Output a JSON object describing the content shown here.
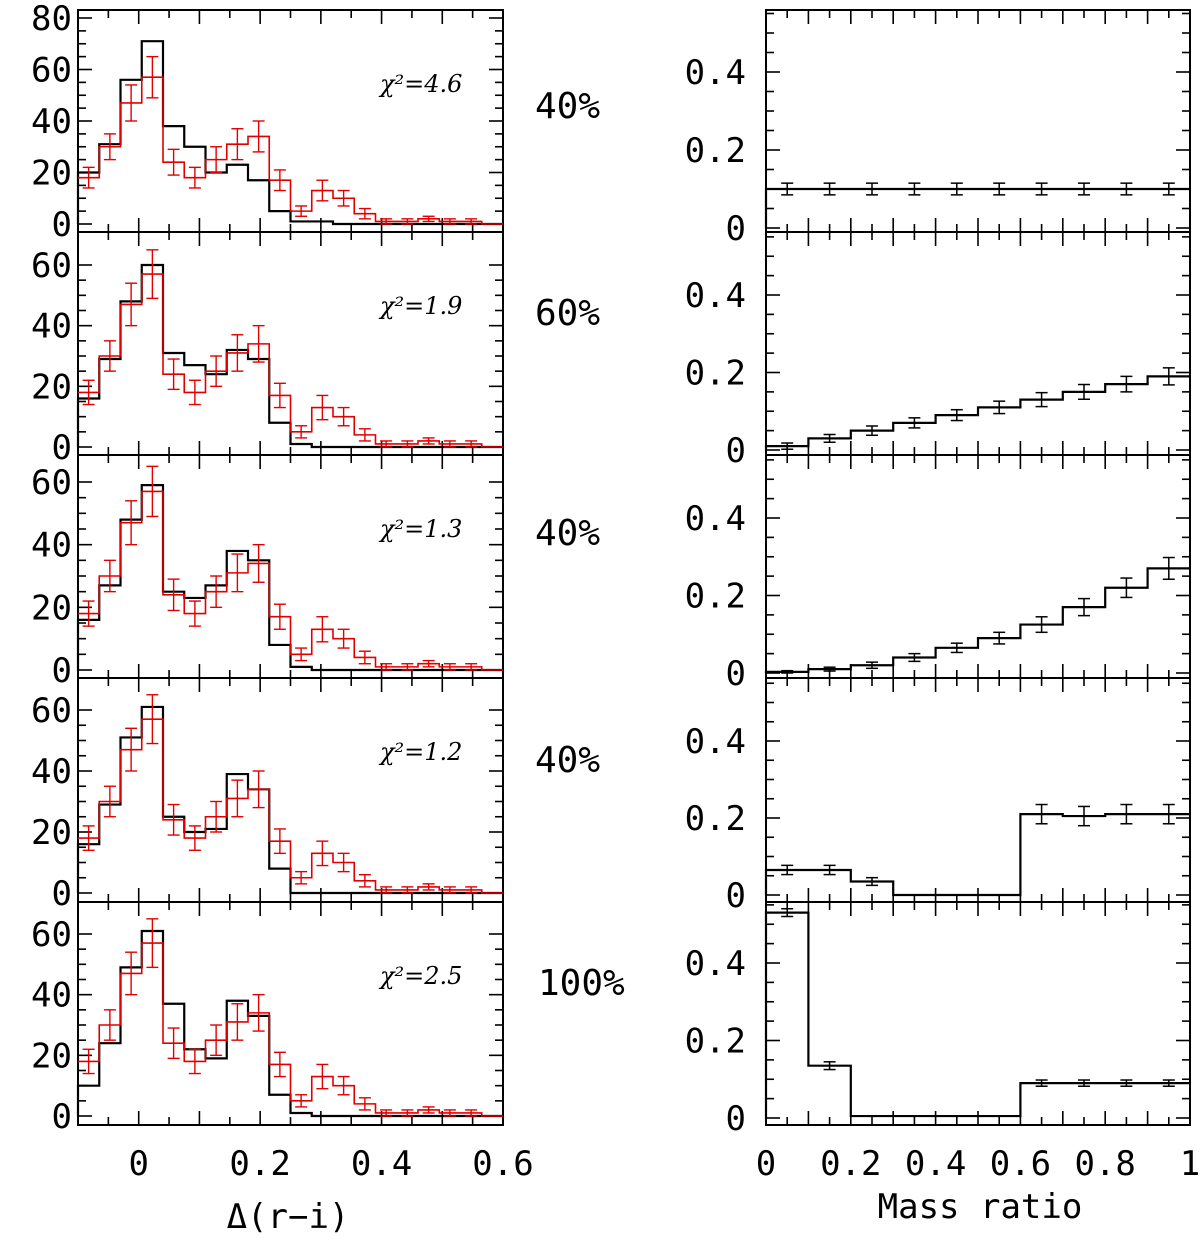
{
  "chart_data": [
    {
      "type": "figure",
      "description_axes": "left: histograms of Delta(r-i); right: mass ratio distributions",
      "left_xlabel": "Δ(r−i)",
      "right_xlabel": "Mass ratio",
      "left_xlim": [
        -0.1,
        0.6
      ],
      "left_xticks": [
        "0",
        "0.2",
        "0.4",
        "0.6"
      ],
      "right_xlim": [
        0,
        1
      ],
      "right_xticks": [
        "0",
        "0.2",
        "0.4",
        "0.6",
        "0.8",
        "1"
      ],
      "right_ylim": [
        0,
        0.55
      ],
      "right_yticks": [
        "0",
        "0.2",
        "0.4"
      ],
      "bin_edges_left": [
        -0.1,
        -0.065,
        -0.03,
        0.005,
        0.04,
        0.075,
        0.11,
        0.145,
        0.18,
        0.215,
        0.25,
        0.285,
        0.32,
        0.355,
        0.39,
        0.425,
        0.46,
        0.495,
        0.53,
        0.565,
        0.6
      ],
      "observed_red": {
        "values": [
          18,
          30,
          47,
          57,
          24,
          18,
          25,
          31,
          34,
          17,
          5,
          13,
          10,
          4,
          1,
          1,
          2,
          1,
          1,
          0
        ],
        "errors": [
          4,
          5,
          7,
          8,
          5,
          4,
          5,
          6,
          6,
          4,
          2,
          4,
          3,
          2,
          1,
          1,
          1,
          1,
          1,
          0
        ]
      },
      "panels": [
        {
          "chi_label": "χ²=4.6",
          "percent_label": "40%",
          "left_ylim": [
            0,
            80
          ],
          "left_yticks": [
            "0",
            "20",
            "40",
            "60",
            "80"
          ],
          "model_black": [
            20,
            31,
            56,
            71,
            38,
            30,
            20,
            23,
            17,
            5,
            1,
            1,
            0,
            0,
            0,
            0,
            0,
            0,
            0,
            0
          ],
          "mass_ratio_values": [
            0.1,
            0.1,
            0.1,
            0.1,
            0.1,
            0.1,
            0.1,
            0.1,
            0.1,
            0.1
          ],
          "mass_ratio_errors": [
            0.015,
            0.015,
            0.015,
            0.015,
            0.015,
            0.015,
            0.015,
            0.015,
            0.015,
            0.015
          ]
        },
        {
          "chi_label": "χ²=1.9",
          "percent_label": "60%",
          "left_ylim": [
            0,
            70
          ],
          "left_yticks": [
            "0",
            "20",
            "40",
            "60"
          ],
          "model_black": [
            16,
            29,
            48,
            60,
            31,
            27,
            24,
            32,
            29,
            8,
            1,
            0,
            0,
            0,
            0,
            0,
            0,
            0,
            0,
            0
          ],
          "mass_ratio_values": [
            0.01,
            0.03,
            0.05,
            0.07,
            0.09,
            0.11,
            0.13,
            0.15,
            0.17,
            0.19
          ],
          "mass_ratio_errors": [
            0.008,
            0.01,
            0.012,
            0.013,
            0.014,
            0.016,
            0.018,
            0.019,
            0.02,
            0.022
          ]
        },
        {
          "chi_label": "χ²=1.3",
          "percent_label": "40%",
          "left_ylim": [
            0,
            70
          ],
          "left_yticks": [
            "0",
            "20",
            "40",
            "60"
          ],
          "model_black": [
            16,
            27,
            48,
            59,
            25,
            23,
            27,
            38,
            35,
            8,
            1,
            0,
            0,
            0,
            0,
            0,
            0,
            0,
            0,
            0
          ],
          "mass_ratio_values": [
            0.003,
            0.01,
            0.02,
            0.04,
            0.065,
            0.09,
            0.125,
            0.17,
            0.22,
            0.27
          ],
          "mass_ratio_errors": [
            0.003,
            0.005,
            0.008,
            0.01,
            0.012,
            0.015,
            0.02,
            0.022,
            0.025,
            0.028
          ]
        },
        {
          "chi_label": "χ²=1.2",
          "percent_label": "40%",
          "left_ylim": [
            0,
            70
          ],
          "left_yticks": [
            "0",
            "20",
            "40",
            "60"
          ],
          "model_black": [
            16,
            29,
            51,
            61,
            25,
            20,
            21,
            39,
            34,
            8,
            0,
            0,
            0,
            0,
            0,
            0,
            0,
            0,
            0,
            0
          ],
          "mass_ratio_values": [
            0.065,
            0.065,
            0.035,
            0.0,
            0.0,
            0.0,
            0.21,
            0.205,
            0.21,
            0.21
          ],
          "mass_ratio_errors": [
            0.012,
            0.012,
            0.01,
            0,
            0,
            0,
            0.025,
            0.025,
            0.025,
            0.025
          ]
        },
        {
          "chi_label": "χ²=2.5",
          "percent_label": "100%",
          "left_ylim": [
            0,
            70
          ],
          "left_yticks": [
            "0",
            "20",
            "40",
            "60"
          ],
          "model_black": [
            10,
            24,
            49,
            61,
            37,
            22,
            19,
            38,
            33,
            7,
            1,
            0,
            0,
            0,
            0,
            0,
            0,
            0,
            0,
            0
          ],
          "mass_ratio_values": [
            0.53,
            0.135,
            0.005,
            0.005,
            0.005,
            0.005,
            0.09,
            0.09,
            0.09,
            0.09
          ],
          "mass_ratio_errors": [
            0.01,
            0.01,
            0,
            0,
            0,
            0,
            0.008,
            0.008,
            0.008,
            0.008
          ]
        }
      ]
    }
  ]
}
